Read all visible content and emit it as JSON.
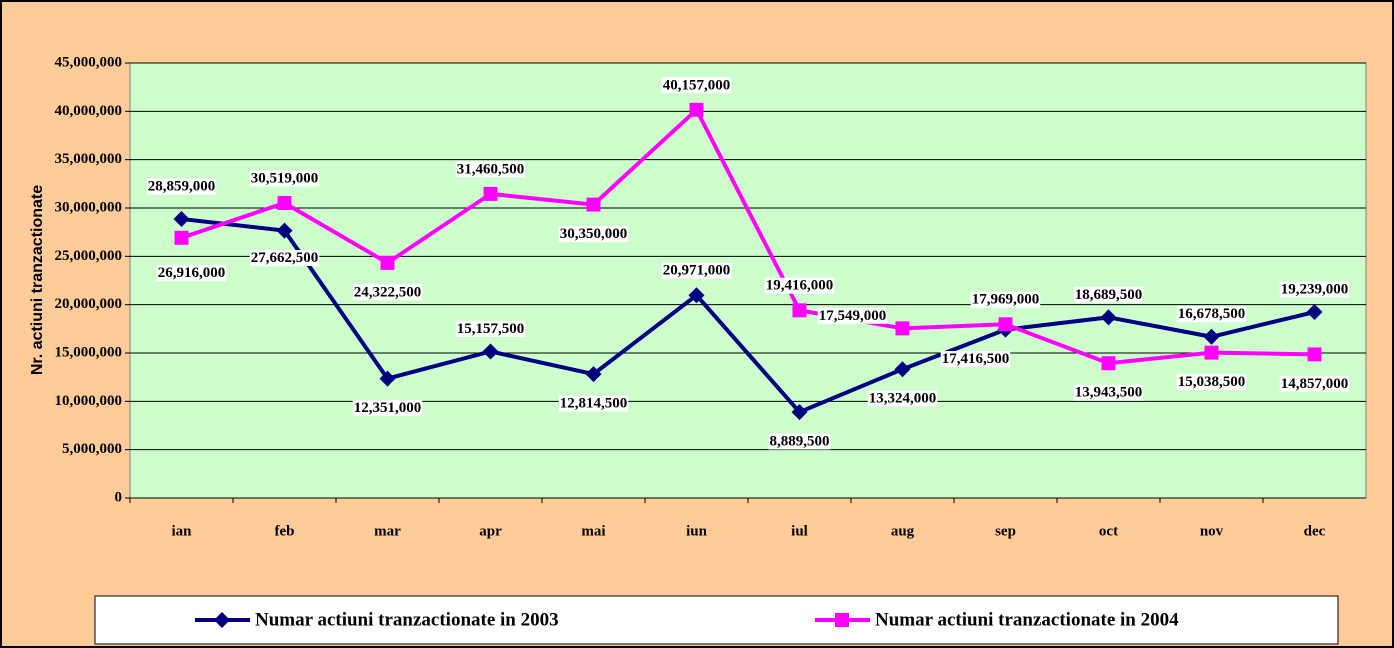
{
  "chart_data": {
    "type": "line",
    "y_label": "Nr. actiuni tranzactionate",
    "categories": [
      "ian",
      "feb",
      "mar",
      "apr",
      "mai",
      "iun",
      "iul",
      "aug",
      "sep",
      "oct",
      "nov",
      "dec"
    ],
    "series": [
      {
        "name": "Numar actiuni tranzactionate in 2003",
        "color": "#000080",
        "values": [
          28859000,
          27662500,
          12351000,
          15157500,
          12814500,
          20971000,
          8889500,
          13324000,
          17416500,
          18689500,
          16678500,
          19239000
        ],
        "value_labels": [
          "28,859,000",
          "27,662,500",
          "12,351,000",
          "15,157,500",
          "12,814,500",
          "20,971,000",
          "8,889,500",
          "13,324,000",
          "17,416,500",
          "18,689,500",
          "16,678,500",
          "19,239,000"
        ]
      },
      {
        "name": "Numar actiuni tranzactionate in 2004",
        "color": "#ff00ff",
        "values": [
          26916000,
          30519000,
          24322500,
          31460500,
          30350000,
          40157000,
          19416000,
          17549000,
          17969000,
          13943500,
          15038500,
          14857000
        ],
        "value_labels": [
          "26,916,000",
          "30,519,000",
          "24,322,500",
          "31,460,500",
          "30,350,000",
          "40,157,000",
          "19,416,000",
          "17,549,000",
          "17,969,000",
          "13,943,500",
          "15,038,500",
          "14,857,000"
        ]
      }
    ],
    "ylim": [
      0,
      45000000
    ],
    "yticks": [
      0,
      {
        "value": 5000000,
        "label": "5,000,000"
      },
      {
        "value": 10000000,
        "label": "10,000,000"
      },
      {
        "value": 15000000,
        "label": "15,000,000"
      },
      {
        "value": 20000000,
        "label": "20,000,000"
      },
      {
        "value": 25000000,
        "label": "25,000,000"
      },
      {
        "value": 30000000,
        "label": "30,000,000"
      },
      {
        "value": 35000000,
        "label": "35,000,000"
      },
      {
        "value": 40000000,
        "label": "40,000,000"
      },
      {
        "value": 45000000,
        "label": "45,000,000"
      }
    ],
    "grid": true,
    "legend": "bottom"
  }
}
